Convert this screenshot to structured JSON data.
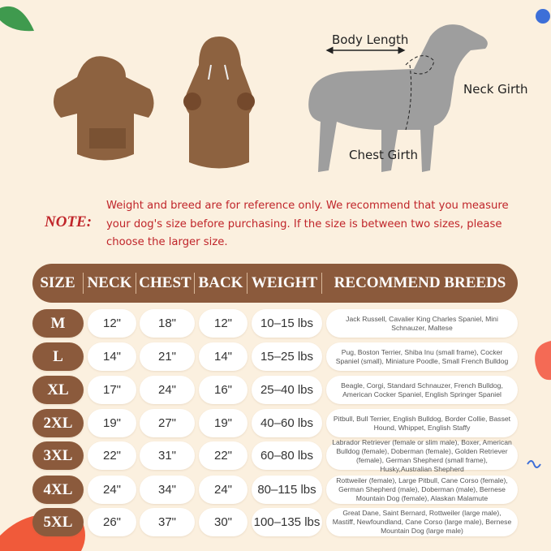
{
  "diagram": {
    "body_length": "Body Length",
    "neck_girth": "Neck Girth",
    "chest_girth": "Chest Girth"
  },
  "note": {
    "label": "NOTE:",
    "lines": [
      "Weight and breed are for reference only. We recommend that you measure",
      "your dog's size before purchasing. If the size is between two sizes, please",
      "choose the larger size."
    ]
  },
  "colors": {
    "brown": "#8b5a3c",
    "note_red": "#c0252a",
    "background": "#fbf0df"
  },
  "table": {
    "headers": [
      "SIZE",
      "NECK",
      "CHEST",
      "BACK",
      "WEIGHT",
      "RECOMMEND BREEDS"
    ],
    "rows": [
      {
        "size": "M",
        "neck": "12\"",
        "chest": "18\"",
        "back": "12\"",
        "weight": "10–15 lbs",
        "breeds": "Jack Russell, Cavalier King Charles Spaniel, Mini Schnauzer, Maltese"
      },
      {
        "size": "L",
        "neck": "14\"",
        "chest": "21\"",
        "back": "14\"",
        "weight": "15–25 lbs",
        "breeds": "Pug, Boston Terrier, Shiba Inu (small frame), Cocker Spaniel (small), Miniature Poodle, Small French Bulldog"
      },
      {
        "size": "XL",
        "neck": "17\"",
        "chest": "24\"",
        "back": "16\"",
        "weight": "25–40 lbs",
        "breeds": "Beagle, Corgi, Standard Schnauzer, French Bulldog, American Cocker Spaniel, English Springer Spaniel"
      },
      {
        "size": "2XL",
        "neck": "19\"",
        "chest": "27\"",
        "back": "19\"",
        "weight": "40–60 lbs",
        "breeds": "Pitbull, Bull Terrier, English Bulldog, Border Collie, Basset Hound, Whippet, English Staffy"
      },
      {
        "size": "3XL",
        "neck": "22\"",
        "chest": "31\"",
        "back": "22\"",
        "weight": "60–80 lbs",
        "breeds": "Labrador Retriever (female or slim male), Boxer, American Bulldog (female), Doberman (female), Golden Retriever (female), German Shepherd (small frame), Husky,Australian Shepherd"
      },
      {
        "size": "4XL",
        "neck": "24\"",
        "chest": "34\"",
        "back": "24\"",
        "weight": "80–115 lbs",
        "breeds": "Rottweiler (female), Large Pitbull, Cane Corso (female), German Shepherd (male), Doberman (male), Bernese Mountain Dog (female), Alaskan Malamute"
      },
      {
        "size": "5XL",
        "neck": "26\"",
        "chest": "37\"",
        "back": "30\"",
        "weight": "100–135 lbs",
        "breeds": "Great Dane, Saint Bernard, Rottweiler (large male), Mastiff, Newfoundland, Cane Corso (large male), Bernese Mountain Dog (large male)"
      }
    ]
  }
}
